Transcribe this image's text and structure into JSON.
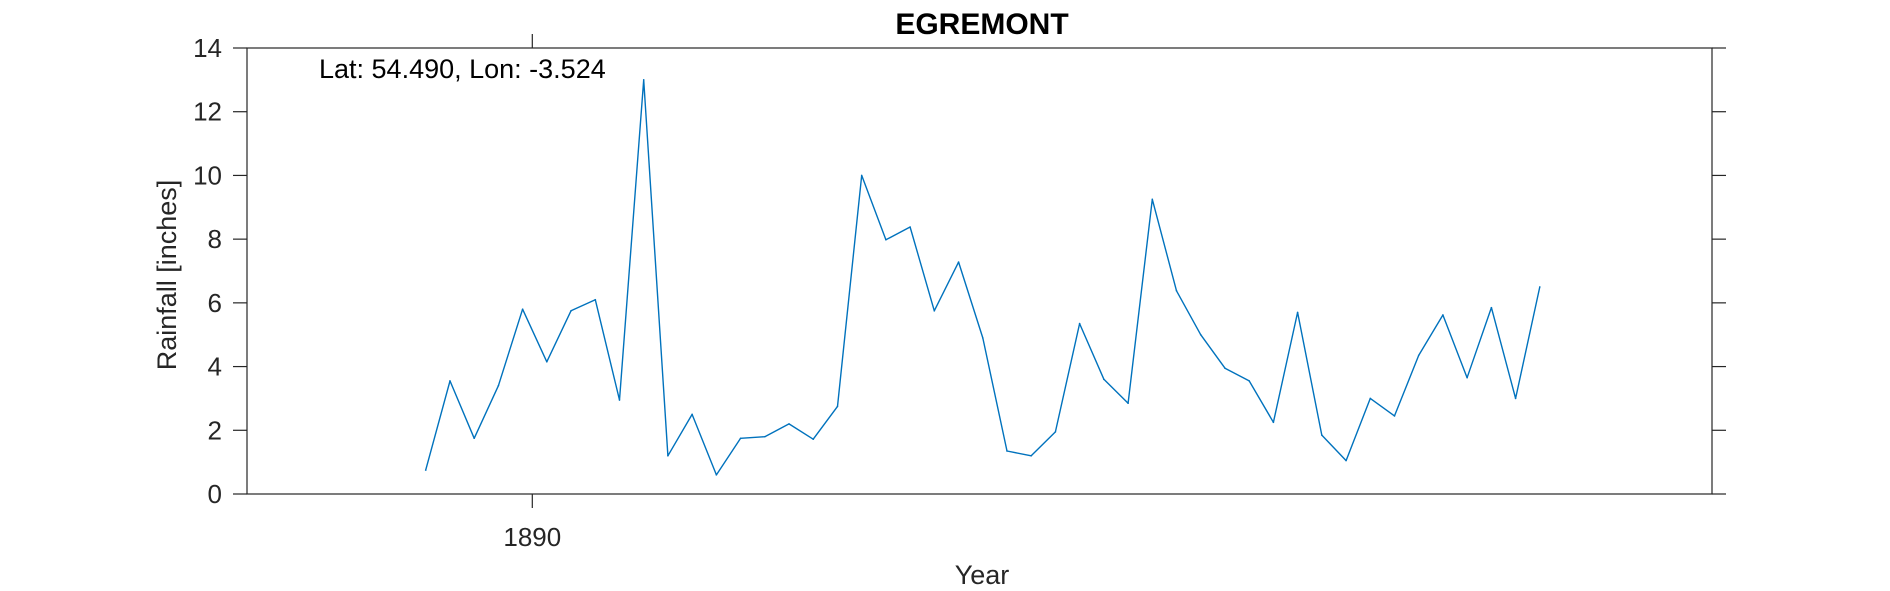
{
  "chart_data": {
    "type": "line",
    "title": "EGREMONT",
    "xlabel": "Year",
    "ylabel": "Rainfall [inches]",
    "annotation": "Lat: 54.490, Lon: -3.524",
    "xlim": [
      1878.22,
      1938.71
    ],
    "ylim": [
      0,
      14
    ],
    "xticks": [
      1890
    ],
    "xtick_labels": [
      "1890"
    ],
    "yticks": [
      0,
      2,
      4,
      6,
      8,
      10,
      12,
      14
    ],
    "ytick_labels": [
      "0",
      "2",
      "4",
      "6",
      "8",
      "10",
      "12",
      "14"
    ],
    "grid": false,
    "line_color": "#0072BD",
    "series": [
      {
        "x": [
          1885.6,
          1886.6,
          1887.6,
          1888.6,
          1889.6,
          1890.6,
          1891.6,
          1892.6,
          1893.6,
          1894.6,
          1895.6,
          1896.6,
          1897.6,
          1898.6,
          1899.6,
          1900.6,
          1901.6,
          1902.6,
          1903.6,
          1904.6,
          1905.6,
          1906.6,
          1907.6,
          1908.6,
          1909.6,
          1910.6,
          1911.6,
          1912.6,
          1913.6,
          1914.6,
          1915.6,
          1916.6,
          1917.6,
          1918.6,
          1919.6,
          1920.6,
          1921.6,
          1922.6,
          1923.6,
          1924.6,
          1925.6,
          1926.6,
          1927.6,
          1928.6,
          1929.6,
          1930.6,
          1931.6
        ],
        "values": [
          0.75,
          3.55,
          1.75,
          3.4,
          5.8,
          4.15,
          5.75,
          6.1,
          2.95,
          13.0,
          1.2,
          2.5,
          0.6,
          1.75,
          1.8,
          2.2,
          1.72,
          2.75,
          10.0,
          7.98,
          8.38,
          5.75,
          7.28,
          4.9,
          1.35,
          1.2,
          1.95,
          5.35,
          3.6,
          2.85,
          9.25,
          6.38,
          5.0,
          3.95,
          3.55,
          2.25,
          5.7,
          1.85,
          1.05,
          3.0,
          2.45,
          4.35,
          5.62,
          3.65,
          5.85,
          3.0,
          6.5
        ]
      }
    ]
  }
}
